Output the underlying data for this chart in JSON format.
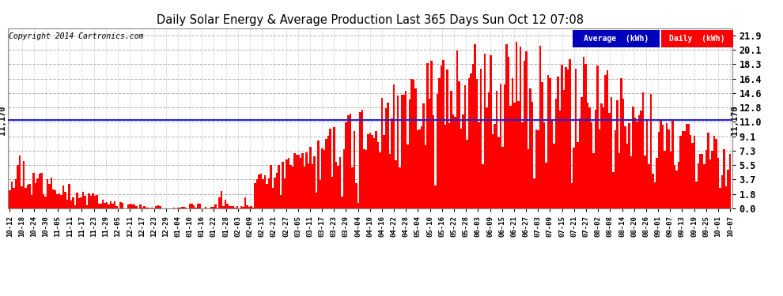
{
  "title": "Daily Solar Energy & Average Production Last 365 Days Sun Oct 12 07:08",
  "copyright": "Copyright 2014 Cartronics.com",
  "average_value": 11.17,
  "average_label": "11,170",
  "yticks": [
    0.0,
    1.8,
    3.7,
    5.5,
    7.3,
    9.1,
    11.0,
    12.8,
    14.6,
    16.4,
    18.3,
    20.1,
    21.9
  ],
  "ylim": [
    0.0,
    22.8
  ],
  "bar_color": "#ff0000",
  "avg_line_color": "#2222cc",
  "background_color": "#ffffff",
  "grid_color": "#aaaaaa",
  "legend_avg_bg": "#0000bb",
  "legend_daily_bg": "#ff0000",
  "xtick_labels": [
    "10-12",
    "10-18",
    "10-24",
    "10-30",
    "11-05",
    "11-11",
    "11-17",
    "11-23",
    "11-29",
    "12-05",
    "12-11",
    "12-17",
    "12-23",
    "12-29",
    "01-04",
    "01-10",
    "01-16",
    "01-22",
    "01-28",
    "02-03",
    "02-09",
    "02-15",
    "02-21",
    "02-27",
    "03-05",
    "03-11",
    "03-17",
    "03-23",
    "03-29",
    "04-04",
    "04-10",
    "04-16",
    "04-22",
    "04-28",
    "05-04",
    "05-10",
    "05-16",
    "05-22",
    "05-28",
    "06-03",
    "06-09",
    "06-15",
    "06-21",
    "06-27",
    "07-03",
    "07-09",
    "07-15",
    "07-21",
    "07-27",
    "08-02",
    "08-08",
    "08-14",
    "08-20",
    "08-26",
    "09-01",
    "09-07",
    "09-13",
    "09-19",
    "09-25",
    "10-01",
    "10-07"
  ]
}
